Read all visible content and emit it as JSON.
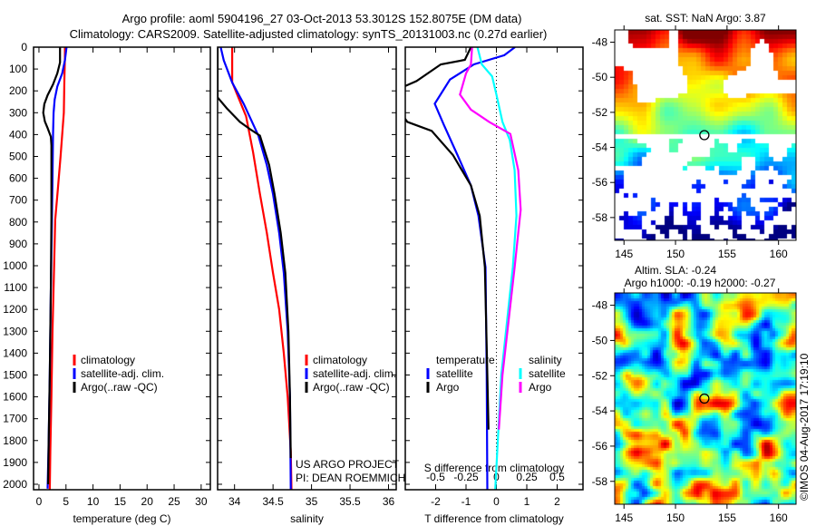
{
  "title": {
    "line1": "Argo profile: aoml 5904196_27 03-Oct-2013 53.3012S 152.8075E (DM data)",
    "line2": "Climatology: CARS2009. Satellite-adjusted climatology: synTS_20131003.nc (0.27d earlier)"
  },
  "project": {
    "line1": "US ARGO PROJECT",
    "line2": "PI: DEAN ROEMMICH"
  },
  "credit": "©IMOS 04-Aug-2017 17:19:10",
  "colors": {
    "climatology": "#ff0000",
    "satellite": "#0000ff",
    "argo": "#000000",
    "sal_satellite": "#00ffff",
    "sal_argo": "#ff00ff"
  },
  "depth_axis": {
    "lim": [
      0,
      2025
    ],
    "ticks": [
      0,
      100,
      200,
      300,
      400,
      500,
      600,
      700,
      800,
      900,
      1000,
      1100,
      1200,
      1300,
      1400,
      1500,
      1600,
      1700,
      1800,
      1900,
      2000
    ]
  },
  "chart_data": [
    {
      "type": "line",
      "id": "temperature",
      "xlabel": "temperature (deg C)",
      "ylabel": "depth",
      "xlim": [
        -1,
        31.7
      ],
      "xticks": [
        0,
        5,
        10,
        15,
        20,
        25,
        30
      ],
      "legend": [
        {
          "label": "climatology",
          "color": "#ff0000"
        },
        {
          "label": "satellite-adj. clim.",
          "color": "#0000ff"
        },
        {
          "label": "Argo(..raw -QC)",
          "color": "#000000"
        }
      ],
      "series": [
        {
          "name": "climatology",
          "color": "#ff0000",
          "points": [
            [
              4.8,
              0
            ],
            [
              4.8,
              50
            ],
            [
              4.7,
              150
            ],
            [
              4.6,
              300
            ],
            [
              4.3,
              400
            ],
            [
              4.0,
              500
            ],
            [
              3.5,
              650
            ],
            [
              3.0,
              790
            ],
            [
              2.8,
              1000
            ],
            [
              2.5,
              1300
            ],
            [
              2.3,
              1600
            ],
            [
              2.1,
              1850
            ],
            [
              2.0,
              2025
            ]
          ]
        },
        {
          "name": "satellite-adj. clim.",
          "color": "#0000ff",
          "points": [
            [
              5.1,
              0
            ],
            [
              4.8,
              60
            ],
            [
              4.3,
              120
            ],
            [
              3.4,
              180
            ],
            [
              2.9,
              240
            ],
            [
              2.7,
              300
            ],
            [
              2.6,
              400
            ],
            [
              2.5,
              600
            ],
            [
              2.4,
              780
            ],
            [
              2.2,
              1100
            ],
            [
              2.0,
              1500
            ],
            [
              1.8,
              1800
            ],
            [
              1.6,
              2020
            ]
          ]
        },
        {
          "name": "Argo(..raw -QC)",
          "color": "#000000",
          "points": [
            [
              3.9,
              0
            ],
            [
              3.9,
              70
            ],
            [
              3.4,
              120
            ],
            [
              2.6,
              170
            ],
            [
              1.6,
              220
            ],
            [
              1.0,
              260
            ],
            [
              0.8,
              300
            ],
            [
              1.1,
              340
            ],
            [
              1.6,
              370
            ],
            [
              2.2,
              410
            ],
            [
              2.3,
              450
            ],
            [
              2.3,
              600
            ],
            [
              2.3,
              780
            ],
            [
              2.2,
              1100
            ],
            [
              2.0,
              1500
            ],
            [
              1.8,
              1800
            ],
            [
              1.7,
              2000
            ]
          ]
        }
      ]
    },
    {
      "type": "line",
      "id": "salinity",
      "xlabel": "salinity",
      "ylabel": "depth",
      "xlim": [
        33.78,
        36.1
      ],
      "xticks": [
        34,
        34.5,
        35,
        35.5,
        36
      ],
      "legend": [
        {
          "label": "climatology",
          "color": "#ff0000"
        },
        {
          "label": "satellite-adj. clim.",
          "color": "#0000ff"
        },
        {
          "label": "Argo(..raw -QC)",
          "color": "#000000"
        }
      ],
      "series": [
        {
          "name": "climatology",
          "color": "#ff0000",
          "points": [
            [
              33.97,
              0
            ],
            [
              33.97,
              160
            ],
            [
              34.05,
              230
            ],
            [
              34.15,
              316
            ],
            [
              34.24,
              480
            ],
            [
              34.33,
              672
            ],
            [
              34.42,
              850
            ],
            [
              34.5,
              1033
            ],
            [
              34.58,
              1200
            ],
            [
              34.64,
              1400
            ],
            [
              34.69,
              1600
            ],
            [
              34.73,
              1850
            ],
            [
              34.74,
              2025
            ]
          ]
        },
        {
          "name": "satellite-adj. clim.",
          "color": "#0000ff",
          "points": [
            [
              33.82,
              0
            ],
            [
              33.86,
              60
            ],
            [
              33.97,
              162
            ],
            [
              34.12,
              260
            ],
            [
              34.31,
              405
            ],
            [
              34.42,
              540
            ],
            [
              34.5,
              672
            ],
            [
              34.58,
              850
            ],
            [
              34.64,
              1033
            ],
            [
              34.69,
              1300
            ],
            [
              34.72,
              1600
            ],
            [
              34.73,
              2025
            ]
          ]
        },
        {
          "name": "Argo(..raw -QC)",
          "color": "#000000",
          "points": [
            [
              33.78,
              0
            ],
            [
              33.78,
              230
            ],
            [
              33.9,
              280
            ],
            [
              34.07,
              342
            ],
            [
              34.2,
              375
            ],
            [
              34.33,
              405
            ],
            [
              34.45,
              540
            ],
            [
              34.52,
              672
            ],
            [
              34.6,
              850
            ],
            [
              34.66,
              1033
            ],
            [
              34.7,
              1300
            ],
            [
              34.72,
              1600
            ],
            [
              34.73,
              1880
            ]
          ]
        }
      ]
    },
    {
      "type": "line",
      "id": "difference",
      "xlabel": "T difference from climatology",
      "xlabel2": "S difference from climatology",
      "ylabel": "depth",
      "xlim": [
        -3.0,
        2.85
      ],
      "xticks": [
        -2,
        -1,
        0,
        1,
        2
      ],
      "xlim2": [
        -0.75,
        0.7125
      ],
      "xticks2": [
        -0.5,
        -0.25,
        0,
        0.25,
        0.5
      ],
      "xticklabels2": [
        "-0.5",
        "-0.25",
        "0",
        "0.25",
        "0.5"
      ],
      "zero_line": 0,
      "legend_temperature": {
        "title": "temperature",
        "items": [
          {
            "label": "satellite",
            "color": "#0000ff"
          },
          {
            "label": "Argo",
            "color": "#000000"
          }
        ]
      },
      "legend_salinity": {
        "title": "salinity",
        "items": [
          {
            "label": "satellite",
            "color": "#00ffff"
          },
          {
            "label": "Argo",
            "color": "#ff00ff"
          }
        ]
      },
      "series": [
        {
          "name": "temperature satellite",
          "axis": "T",
          "color": "#0000ff",
          "points": [
            [
              0.61,
              0
            ],
            [
              0.26,
              37
            ],
            [
              -0.74,
              79
            ],
            [
              -1.53,
              148
            ],
            [
              -2.03,
              259
            ],
            [
              -1.73,
              356
            ],
            [
              -1.28,
              494
            ],
            [
              -0.84,
              633
            ],
            [
              -0.59,
              772
            ],
            [
              -0.36,
              1007
            ],
            [
              -0.32,
              1500
            ],
            [
              -0.3,
              2025
            ]
          ]
        },
        {
          "name": "temperature Argo",
          "axis": "T",
          "color": "#000000",
          "points": [
            [
              -0.84,
              0
            ],
            [
              -1.04,
              58
            ],
            [
              -1.83,
              79
            ],
            [
              -2.63,
              155
            ],
            [
              -3.2,
              190
            ],
            [
              -3.2,
              290
            ],
            [
              -2.93,
              342
            ],
            [
              -2.13,
              383
            ],
            [
              -1.43,
              494
            ],
            [
              -0.84,
              633
            ],
            [
              -0.55,
              772
            ],
            [
              -0.38,
              1007
            ],
            [
              -0.3,
              1500
            ],
            [
              -0.26,
              1750
            ]
          ]
        },
        {
          "name": "salinity satellite",
          "axis": "S",
          "color": "#00ffff",
          "points": [
            [
              -0.156,
              0
            ],
            [
              -0.12,
              79
            ],
            [
              -0.035,
              134
            ],
            [
              0.0,
              217
            ],
            [
              0.05,
              342
            ],
            [
              0.11,
              425
            ],
            [
              0.15,
              563
            ],
            [
              0.165,
              772
            ],
            [
              0.135,
              1007
            ],
            [
              0.04,
              1500
            ],
            [
              -0.01,
              2025
            ]
          ]
        },
        {
          "name": "salinity Argo",
          "axis": "S",
          "color": "#ff00ff",
          "points": [
            [
              -0.2,
              0
            ],
            [
              -0.21,
              79
            ],
            [
              -0.25,
              120
            ],
            [
              -0.3,
              217
            ],
            [
              -0.21,
              286
            ],
            [
              -0.06,
              342
            ],
            [
              0.115,
              397
            ],
            [
              0.18,
              563
            ],
            [
              0.2,
              744
            ],
            [
              0.15,
              1007
            ],
            [
              0.05,
              1500
            ],
            [
              0.02,
              1750
            ]
          ]
        }
      ]
    },
    {
      "type": "heatmap",
      "id": "sst-map",
      "title": "sat. SST: NaN Argo: 3.87",
      "xlim": [
        144.1,
        161.7
      ],
      "ylim": [
        -59.3,
        -47.3
      ],
      "xticks": [
        145,
        150,
        155,
        160
      ],
      "yticks": [
        -48,
        -50,
        -52,
        -54,
        -56,
        -58
      ],
      "marker": {
        "lon": 152.8,
        "lat": -53.3
      }
    },
    {
      "type": "heatmap",
      "id": "sla-map",
      "title": "Altim. SLA: -0.24",
      "subtitle": "Argo h1000: -0.19 h2000: -0.27",
      "xlim": [
        144.1,
        161.7
      ],
      "ylim": [
        -59.3,
        -47.3
      ],
      "xticks": [
        145,
        150,
        155,
        160
      ],
      "yticks": [
        -48,
        -50,
        -52,
        -54,
        -56,
        -58
      ],
      "marker": {
        "lon": 152.8,
        "lat": -53.3
      }
    }
  ]
}
